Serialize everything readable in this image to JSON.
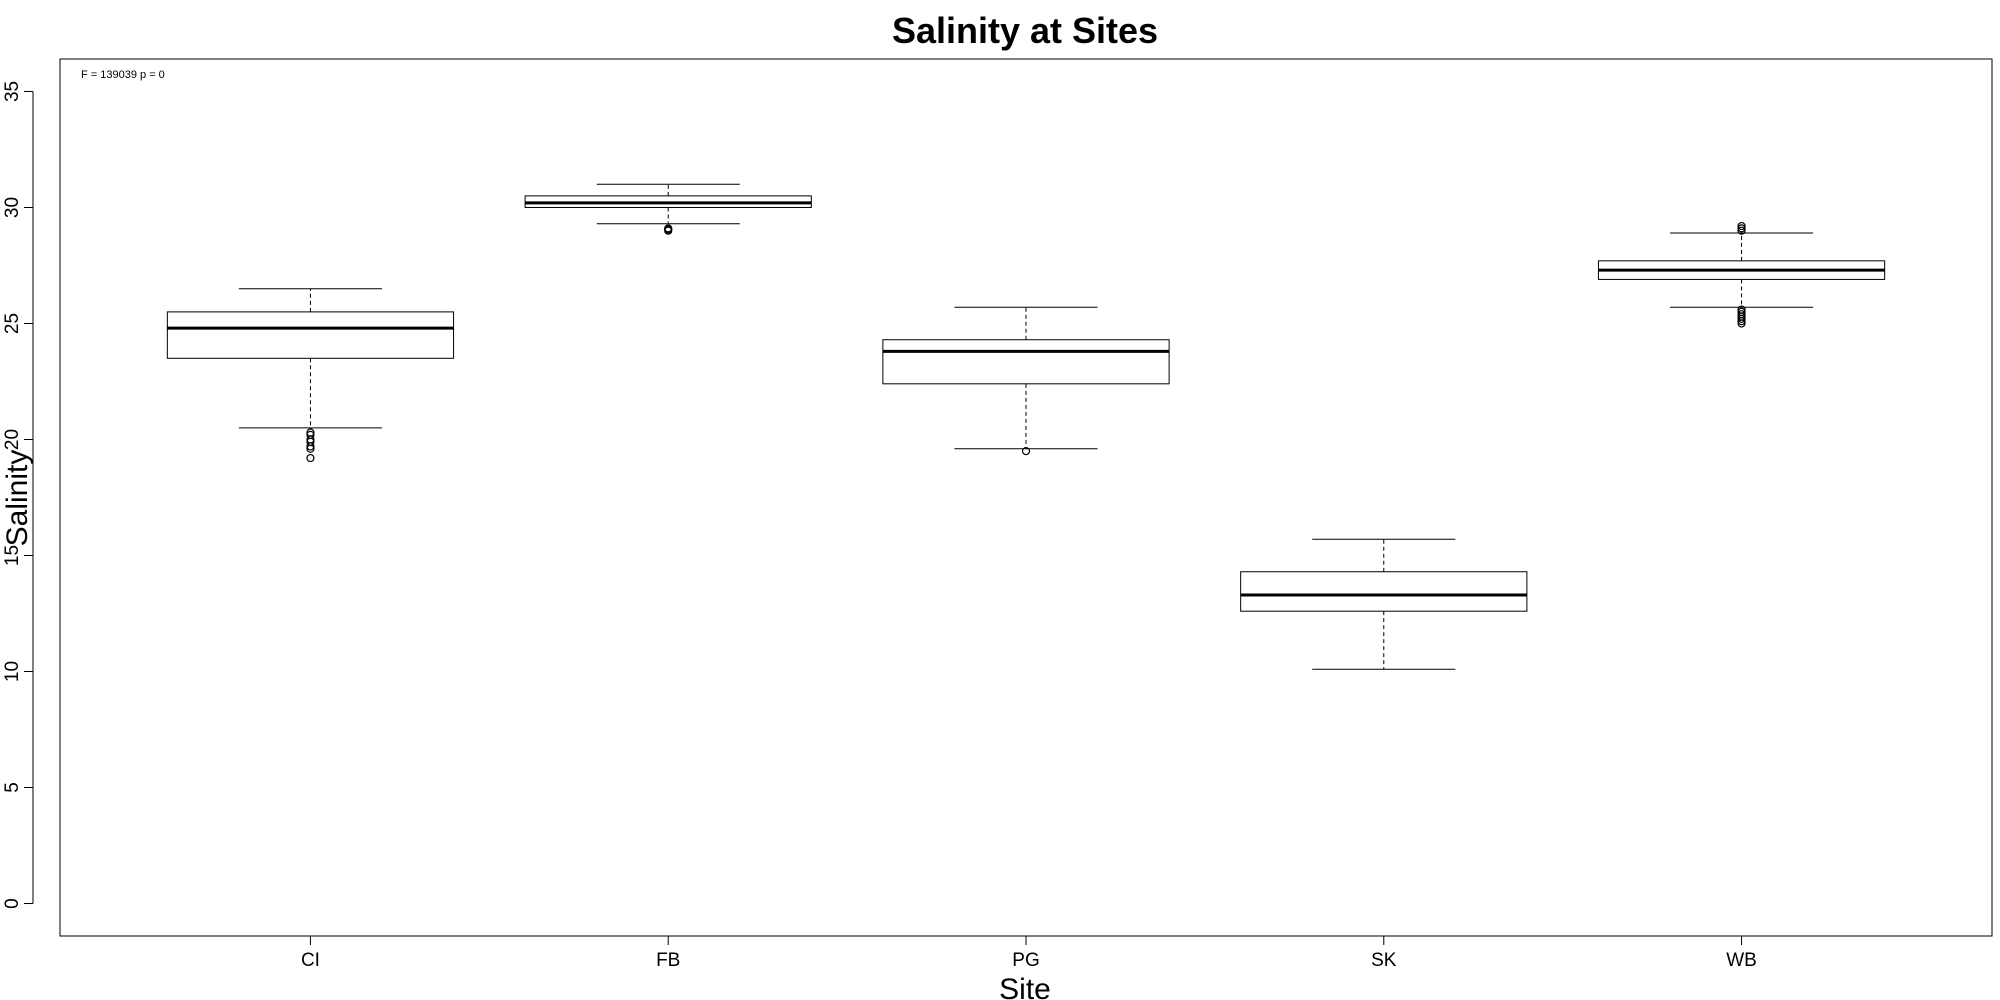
{
  "chart_data": {
    "type": "box",
    "title": "Salinity at Sites",
    "xlabel": "Site",
    "ylabel": "Salinity",
    "annotation": "F = 139039 p = 0",
    "ylim": [
      -1.4,
      36.4
    ],
    "yticks": [
      0,
      5,
      10,
      15,
      20,
      25,
      30,
      35
    ],
    "ytick_labels": [
      "0",
      "5",
      "10",
      "15",
      "20",
      "25",
      "30",
      "35"
    ],
    "grid": false,
    "legend": "none",
    "categories": [
      "CI",
      "FB",
      "PG",
      "SK",
      "WB"
    ],
    "boxes": [
      {
        "site": "CI",
        "whisker_low": 20.5,
        "q1": 23.5,
        "median": 24.8,
        "q3": 25.5,
        "whisker_high": 26.5,
        "outliers": [
          20.3,
          20.2,
          20.0,
          19.9,
          19.7,
          19.6,
          19.2
        ]
      },
      {
        "site": "FB",
        "whisker_low": 29.3,
        "q1": 30.0,
        "median": 30.2,
        "q3": 30.5,
        "whisker_high": 31.0,
        "outliers": [
          29.1,
          29.05,
          29.0
        ]
      },
      {
        "site": "PG",
        "whisker_low": 19.6,
        "q1": 22.4,
        "median": 23.8,
        "q3": 24.3,
        "whisker_high": 25.7,
        "outliers": [
          19.5
        ]
      },
      {
        "site": "SK",
        "whisker_low": 10.1,
        "q1": 12.6,
        "median": 13.3,
        "q3": 14.3,
        "whisker_high": 15.7,
        "outliers": []
      },
      {
        "site": "WB",
        "whisker_low": 25.7,
        "q1": 26.9,
        "median": 27.3,
        "q3": 27.7,
        "whisker_high": 28.9,
        "outliers": [
          29.2,
          29.1,
          29.0,
          25.6,
          25.5,
          25.4,
          25.3,
          25.2,
          25.1,
          25.0
        ]
      }
    ]
  }
}
